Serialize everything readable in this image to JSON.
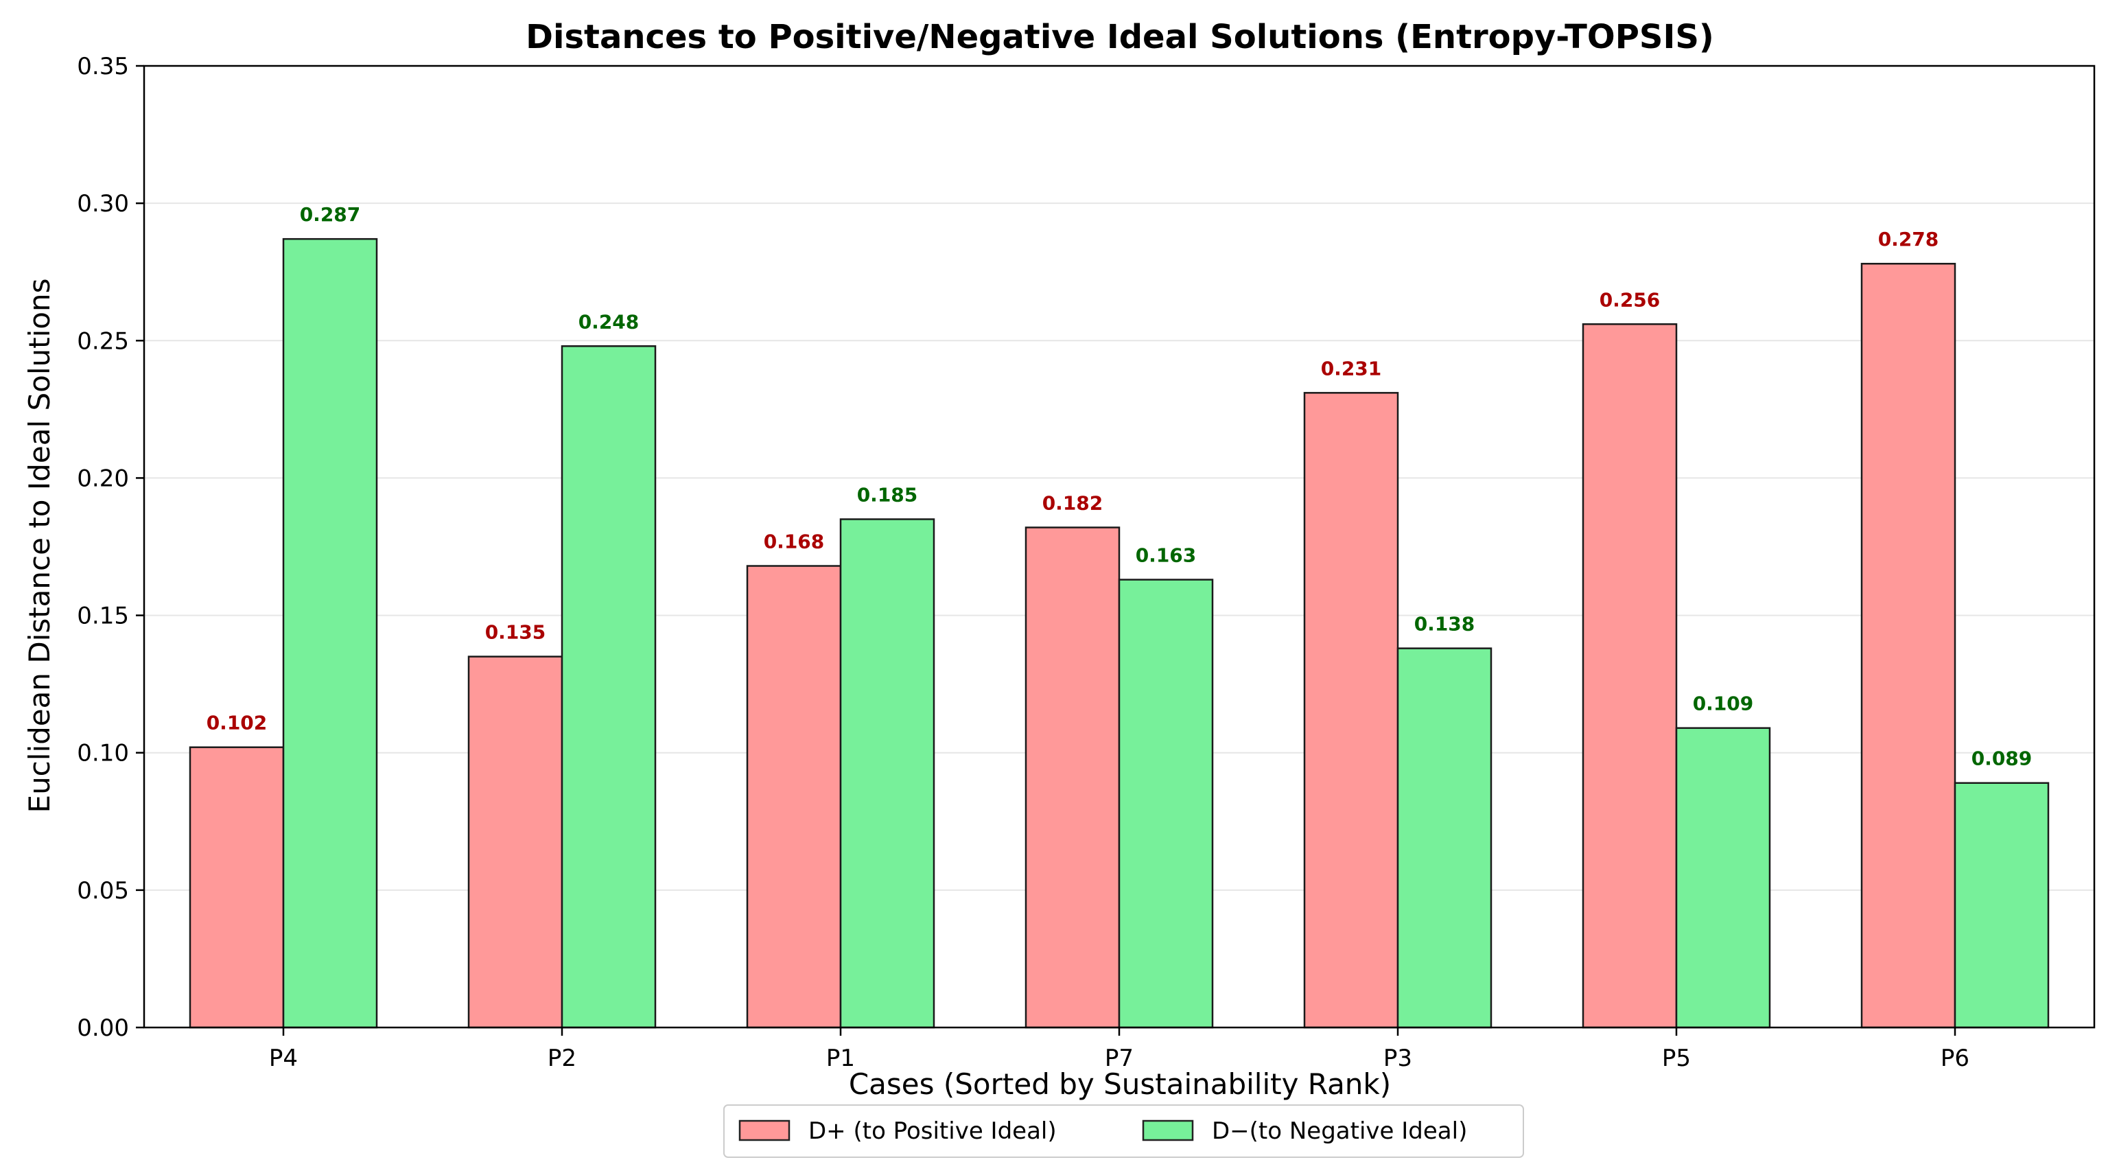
{
  "chart_data": {
    "type": "bar",
    "title": "Distances to Positive/Negative Ideal Solutions (Entropy-TOPSIS)",
    "xlabel": "Cases (Sorted by Sustainability Rank)",
    "ylabel": "Euclidean Distance to Ideal Solutions",
    "ylim": [
      0,
      0.35
    ],
    "yticks": [
      "0.00",
      "0.05",
      "0.10",
      "0.15",
      "0.20",
      "0.25",
      "0.30",
      "0.35"
    ],
    "grid": "horizontal",
    "legend_position": "bottom-center",
    "categories": [
      "P4",
      "P2",
      "P1",
      "P7",
      "P3",
      "P5",
      "P6"
    ],
    "series": [
      {
        "name": "D+ (to Positive Ideal)",
        "color": "#ff9999",
        "label_color": "#aa0000",
        "values": [
          0.102,
          0.135,
          0.168,
          0.182,
          0.231,
          0.256,
          0.278
        ],
        "labels": [
          "0.102",
          "0.135",
          "0.168",
          "0.182",
          "0.231",
          "0.256",
          "0.278"
        ]
      },
      {
        "name": "D−(to Negative Ideal)",
        "color": "#77f09a",
        "label_color": "#006600",
        "values": [
          0.287,
          0.248,
          0.185,
          0.163,
          0.138,
          0.109,
          0.089
        ],
        "labels": [
          "0.287",
          "0.248",
          "0.185",
          "0.163",
          "0.138",
          "0.109",
          "0.089"
        ]
      }
    ]
  }
}
